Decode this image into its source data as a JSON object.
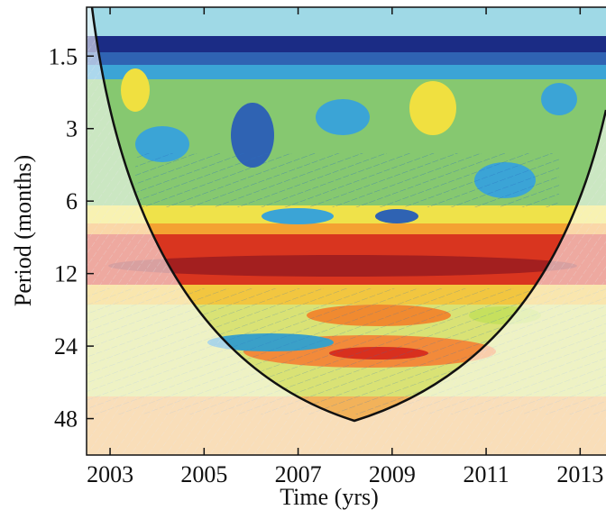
{
  "chart_data": {
    "type": "wavelet",
    "x_label": "Time (yrs)",
    "y_label": "Period (months)",
    "xlim": [
      2002.5,
      2013.55
    ],
    "xticks": [
      2003,
      2005,
      2007,
      2009,
      2011,
      2013
    ],
    "ylim": [
      0.94,
      68
    ],
    "yticks": [
      1.5,
      3,
      6,
      12,
      24,
      48
    ],
    "y_scale": "log"
  }
}
